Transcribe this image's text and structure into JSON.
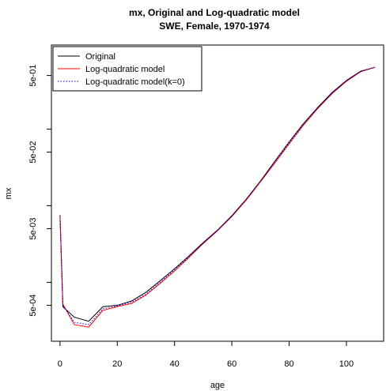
{
  "chart_data": {
    "type": "line",
    "title": "mx, Original and Log-quadratic model",
    "subtitle": "SWE, Female, 1970-1974",
    "xlabel": "age",
    "ylabel": "mx",
    "xlim": [
      -3,
      113
    ],
    "ylim": [
      0.00017,
      1.25
    ],
    "y_scale": "log",
    "x_ticks": [
      0,
      20,
      40,
      60,
      80,
      100
    ],
    "x_tick_labels": [
      "0",
      "20",
      "40",
      "60",
      "80",
      "100"
    ],
    "y_ticks": [
      0.0005,
      0.005,
      0.05,
      0.5
    ],
    "y_tick_labels": [
      "5e-04",
      "5e-03",
      "5e-02",
      "5e-01"
    ],
    "legend_position": "top-left",
    "series": [
      {
        "name": "Original",
        "color": "#000000",
        "style": "solid",
        "x": [
          0,
          1,
          5,
          10,
          15,
          20,
          25,
          30,
          35,
          40,
          45,
          50,
          55,
          60,
          65,
          70,
          75,
          80,
          85,
          90,
          95,
          100,
          105,
          110
        ],
        "y": [
          0.0075,
          0.00048,
          0.00035,
          0.00031,
          0.00048,
          0.0005,
          0.00057,
          0.00074,
          0.00105,
          0.0015,
          0.0022,
          0.0033,
          0.0048,
          0.0074,
          0.0121,
          0.021,
          0.038,
          0.068,
          0.118,
          0.192,
          0.3,
          0.43,
          0.57,
          0.64
        ]
      },
      {
        "name": "Log-quadratic model",
        "color": "#ff0000",
        "style": "solid",
        "x": [
          0,
          1,
          5,
          10,
          15,
          20,
          25,
          30,
          35,
          40,
          45,
          50,
          55,
          60,
          65,
          70,
          75,
          80,
          85,
          90,
          95,
          100,
          105,
          110
        ],
        "y": [
          0.0075,
          0.00052,
          0.00028,
          0.00026,
          0.00043,
          0.00048,
          0.00053,
          0.00068,
          0.00097,
          0.0014,
          0.0021,
          0.0032,
          0.0047,
          0.0072,
          0.0118,
          0.0205,
          0.036,
          0.064,
          0.112,
          0.185,
          0.29,
          0.42,
          0.56,
          0.64
        ]
      },
      {
        "name": "Log-quadratic model(k=0)",
        "color": "#0000ff",
        "style": "dotted",
        "x": [
          0,
          1,
          5,
          10,
          15,
          20,
          25,
          30,
          35,
          40,
          45,
          50,
          55,
          60,
          65,
          70,
          75,
          80,
          85,
          90,
          95,
          100,
          105,
          110
        ],
        "y": [
          0.0075,
          0.0005,
          0.0003,
          0.00028,
          0.00045,
          0.00049,
          0.00055,
          0.0007,
          0.001,
          0.00145,
          0.00215,
          0.00325,
          0.00475,
          0.0073,
          0.012,
          0.0207,
          0.037,
          0.066,
          0.115,
          0.188,
          0.295,
          0.425,
          0.565,
          0.64
        ]
      }
    ]
  }
}
